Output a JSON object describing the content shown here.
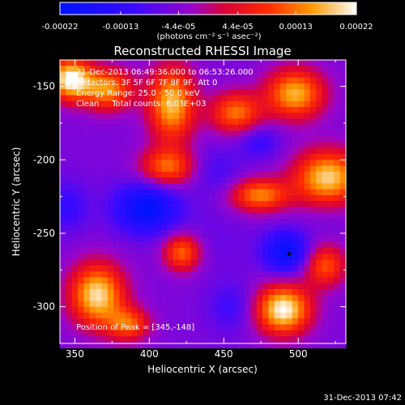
{
  "chart_data": {
    "type": "heatmap",
    "title": "Reconstructed RHESSI Image",
    "xlabel": "Heliocentric X (arcsec)",
    "ylabel": "Heliocentric Y (arcsec)",
    "xlim": [
      340,
      532
    ],
    "ylim": [
      -325,
      -132
    ],
    "x_ticks": [
      350,
      400,
      450,
      500
    ],
    "y_ticks": [
      -150,
      -200,
      -250,
      -300
    ],
    "colorbar": {
      "min": -0.00022,
      "max": 0.00022,
      "tick_values": [
        -0.00022,
        -0.00013,
        -4.4e-05,
        4.4e-05,
        0.00013,
        0.00022
      ],
      "tick_labels": [
        "-0.00022",
        "-0.00013",
        "-4.4e-05",
        "4.4e-05",
        "0.00013",
        "0.00022"
      ],
      "unit_label": "(photons cm⁻² s⁻¹ asec⁻²)"
    },
    "info_lines": [
      "31-Dec-2013 06:49:36.000 to 06:53:26.000",
      "Detectors: 3F 5F 6F 7F 8F 9F, Att 0",
      "Energy Range: 25.0 - 50.0 keV",
      "Clean     Total counts: 6.03E+03"
    ],
    "peak_label": "Position of Peak = [345,-148]",
    "peak_position": [
      345,
      -148
    ],
    "grid": false,
    "blobs": [
      {
        "x": 347,
        "y": -145,
        "peak": 0.00022,
        "sx": 10,
        "sy": 10
      },
      {
        "x": 372,
        "y": -152,
        "peak": 0.00015,
        "sx": 12,
        "sy": 10
      },
      {
        "x": 415,
        "y": -162,
        "peak": 0.00018,
        "sx": 11,
        "sy": 18
      },
      {
        "x": 412,
        "y": -205,
        "peak": 0.00012,
        "sx": 13,
        "sy": 9
      },
      {
        "x": 458,
        "y": -168,
        "peak": 0.00013,
        "sx": 12,
        "sy": 10
      },
      {
        "x": 498,
        "y": -155,
        "peak": 0.00017,
        "sx": 14,
        "sy": 12
      },
      {
        "x": 520,
        "y": -212,
        "peak": 0.00019,
        "sx": 16,
        "sy": 13
      },
      {
        "x": 474,
        "y": -224,
        "peak": 0.00014,
        "sx": 14,
        "sy": 8
      },
      {
        "x": 365,
        "y": -292,
        "peak": 0.0002,
        "sx": 13,
        "sy": 15
      },
      {
        "x": 386,
        "y": -312,
        "peak": 0.00011,
        "sx": 10,
        "sy": 8
      },
      {
        "x": 422,
        "y": -263,
        "peak": 0.00013,
        "sx": 9,
        "sy": 9
      },
      {
        "x": 490,
        "y": -302,
        "peak": 0.00022,
        "sx": 13,
        "sy": 12
      },
      {
        "x": 518,
        "y": -272,
        "peak": 0.00011,
        "sx": 10,
        "sy": 10
      },
      {
        "x": 398,
        "y": -233,
        "peak": -0.00022,
        "sx": 15,
        "sy": 12
      },
      {
        "x": 345,
        "y": -232,
        "peak": -0.00012,
        "sx": 10,
        "sy": 12
      },
      {
        "x": 445,
        "y": -208,
        "peak": -0.0001,
        "sx": 12,
        "sy": 12
      },
      {
        "x": 474,
        "y": -188,
        "peak": -0.00012,
        "sx": 10,
        "sy": 8
      },
      {
        "x": 492,
        "y": -263,
        "peak": -0.00021,
        "sx": 11,
        "sy": 10
      },
      {
        "x": 455,
        "y": -300,
        "peak": -0.00011,
        "sx": 11,
        "sy": 12
      },
      {
        "x": 440,
        "y": -255,
        "peak": -7e-05,
        "sx": 18,
        "sy": 14
      },
      {
        "x": 520,
        "y": -242,
        "peak": -6e-05,
        "sx": 10,
        "sy": 8
      }
    ],
    "background": -5e-05
  },
  "timestamp": "31-Dec-2013 07:42"
}
